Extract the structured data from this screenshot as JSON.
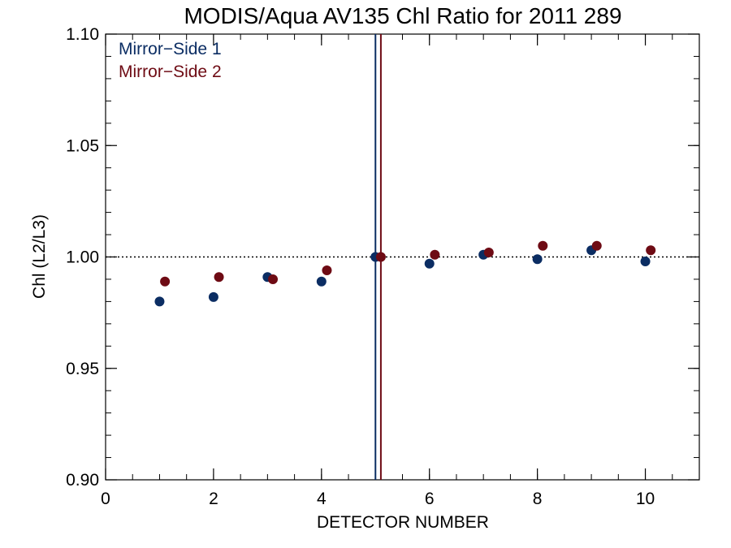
{
  "chart_data": {
    "type": "scatter",
    "title": "MODIS/Aqua AV135 Chl Ratio for 2011 289",
    "xlabel": "DETECTOR NUMBER",
    "ylabel": "Chl (L2/L3)",
    "xlim": [
      0,
      11
    ],
    "ylim": [
      0.9,
      1.1
    ],
    "x_ticks": [
      0,
      2,
      4,
      6,
      8,
      10
    ],
    "x_tick_labels": [
      "0",
      "2",
      "4",
      "6",
      "8",
      "10"
    ],
    "y_ticks": [
      0.9,
      0.95,
      1.0,
      1.05,
      1.1
    ],
    "y_tick_labels": [
      "0.90",
      "0.95",
      "1.00",
      "1.05",
      "1.10"
    ],
    "reference_line": {
      "y": 1.0,
      "style": "dotted",
      "color": "#000000"
    },
    "legend_placement": "top-left",
    "grid": false,
    "series": [
      {
        "name": "Mirror−Side 1",
        "color": "#0b2d63",
        "x": [
          1,
          2,
          3,
          4,
          5,
          6,
          7,
          8,
          9,
          10
        ],
        "y": [
          0.98,
          0.982,
          0.991,
          0.989,
          1.0,
          0.997,
          1.001,
          0.999,
          1.003,
          0.998
        ],
        "vertical_line_x": 5.0
      },
      {
        "name": "Mirror−Side 2",
        "color": "#6e0b14",
        "x": [
          1.1,
          2.1,
          3.1,
          4.1,
          5.1,
          6.1,
          7.1,
          8.1,
          9.1,
          10.1
        ],
        "y": [
          0.989,
          0.991,
          0.99,
          0.994,
          1.0,
          1.001,
          1.002,
          1.005,
          1.005,
          1.003
        ],
        "vertical_line_x": 5.1
      }
    ]
  }
}
